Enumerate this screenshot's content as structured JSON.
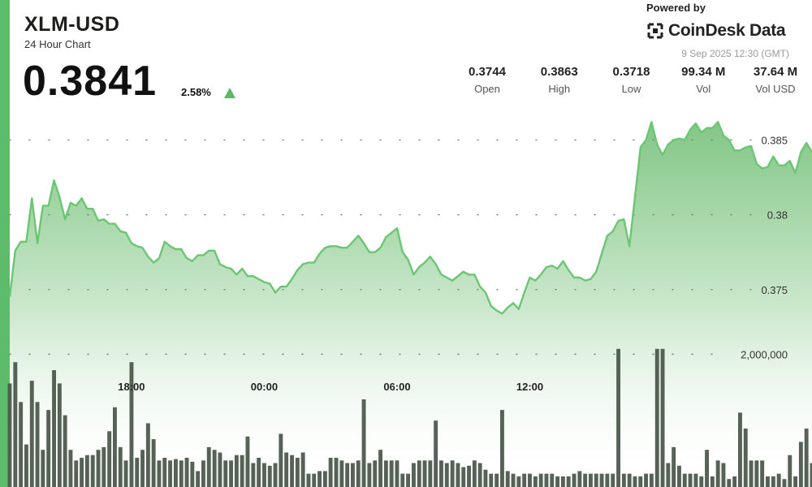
{
  "header": {
    "pair": "XLM-USD",
    "subtitle": "24 Hour Chart",
    "price": "0.3841",
    "change_pct": "2.58%",
    "change_direction": "up"
  },
  "branding": {
    "powered_by": "Powered by",
    "name": "CoinDesk Data",
    "timestamp": "9 Sep 2025 12:30 (GMT)"
  },
  "stats": [
    {
      "value": "0.3744",
      "label": "Open"
    },
    {
      "value": "0.3863",
      "label": "High"
    },
    {
      "value": "0.3718",
      "label": "Low"
    },
    {
      "value": "99.34 M",
      "label": "Vol"
    },
    {
      "value": "37.64 M",
      "label": "Vol USD"
    }
  ],
  "colors": {
    "accent": "#5cbc6b",
    "line": "#6cc574",
    "area_top": "#7cc47f",
    "volume_bar": "#4c5a4c",
    "up_arrow": "#57b965"
  },
  "chart_data": [
    {
      "type": "area",
      "series_role": "price",
      "time_range": [
        "2025-09-08 12:30",
        "2025-09-09 12:30"
      ],
      "interval_minutes": 15,
      "y_ticks": [
        "0.375",
        "0.38",
        "0.385"
      ],
      "x_ticks": [
        "18:00",
        "00:00",
        "06:00",
        "12:00"
      ],
      "ylim": [
        0.3713,
        0.3873
      ],
      "grid": "horizontal dotted",
      "values": [
        0.3745,
        0.3776,
        0.3782,
        0.3782,
        0.3811,
        0.3781,
        0.3806,
        0.3806,
        0.3823,
        0.3812,
        0.3797,
        0.3808,
        0.3806,
        0.3811,
        0.3804,
        0.3804,
        0.3796,
        0.3797,
        0.3794,
        0.3794,
        0.3789,
        0.3788,
        0.3781,
        0.3779,
        0.3778,
        0.3772,
        0.3768,
        0.3771,
        0.3782,
        0.3779,
        0.3777,
        0.3777,
        0.3771,
        0.3769,
        0.3773,
        0.3773,
        0.3776,
        0.3776,
        0.3767,
        0.3765,
        0.3764,
        0.376,
        0.3764,
        0.3759,
        0.3759,
        0.3757,
        0.3755,
        0.3754,
        0.3748,
        0.3752,
        0.3752,
        0.3757,
        0.3763,
        0.3767,
        0.3768,
        0.3768,
        0.3774,
        0.3778,
        0.3779,
        0.3779,
        0.3778,
        0.3778,
        0.3782,
        0.3786,
        0.3781,
        0.3775,
        0.3775,
        0.3778,
        0.3785,
        0.3788,
        0.3791,
        0.3775,
        0.377,
        0.376,
        0.3765,
        0.3768,
        0.3772,
        0.3767,
        0.376,
        0.3758,
        0.3756,
        0.3759,
        0.3762,
        0.376,
        0.376,
        0.3752,
        0.3748,
        0.3739,
        0.3736,
        0.3734,
        0.3738,
        0.3741,
        0.3737,
        0.3748,
        0.3758,
        0.3756,
        0.376,
        0.3765,
        0.3766,
        0.3764,
        0.3769,
        0.3763,
        0.3758,
        0.3758,
        0.3756,
        0.3757,
        0.3762,
        0.3774,
        0.3786,
        0.3789,
        0.3796,
        0.3797,
        0.3779,
        0.3812,
        0.3845,
        0.385,
        0.3862,
        0.3847,
        0.384,
        0.3847,
        0.385,
        0.3851,
        0.385,
        0.3857,
        0.3861,
        0.3855,
        0.3858,
        0.3858,
        0.3862,
        0.3853,
        0.385,
        0.3843,
        0.3843,
        0.3845,
        0.3846,
        0.3834,
        0.3831,
        0.3832,
        0.3839,
        0.3833,
        0.3833,
        0.3836,
        0.3828,
        0.3842,
        0.3848,
        0.3842
      ]
    },
    {
      "type": "bar",
      "series_role": "volume",
      "y_ticks": [
        "2,000,000"
      ],
      "ylim": [
        0,
        3300000
      ],
      "values": [
        1560000,
        1880000,
        1280000,
        640000,
        1600000,
        1280000,
        560000,
        1160000,
        1760000,
        1560000,
        1080000,
        560000,
        400000,
        440000,
        480000,
        480000,
        560000,
        600000,
        840000,
        1200000,
        600000,
        400000,
        1880000,
        440000,
        560000,
        960000,
        720000,
        400000,
        440000,
        400000,
        420000,
        400000,
        440000,
        380000,
        240000,
        400000,
        600000,
        560000,
        520000,
        400000,
        400000,
        480000,
        480000,
        760000,
        360000,
        440000,
        360000,
        320000,
        360000,
        800000,
        520000,
        480000,
        440000,
        520000,
        200000,
        200000,
        240000,
        240000,
        440000,
        440000,
        400000,
        360000,
        360000,
        400000,
        1320000,
        360000,
        400000,
        560000,
        400000,
        400000,
        400000,
        200000,
        200000,
        360000,
        400000,
        400000,
        400000,
        1000000,
        400000,
        360000,
        400000,
        360000,
        300000,
        320000,
        400000,
        360000,
        260000,
        200000,
        200000,
        1160000,
        240000,
        200000,
        160000,
        200000,
        200000,
        160000,
        200000,
        200000,
        200000,
        160000,
        160000,
        160000,
        200000,
        240000,
        200000,
        200000,
        200000,
        200000,
        200000,
        200000,
        2080000,
        200000,
        200000,
        160000,
        160000,
        200000,
        200000,
        2080000,
        2080000,
        360000,
        600000,
        320000,
        200000,
        200000,
        200000,
        160000,
        560000,
        160000,
        400000,
        360000,
        120000,
        160000,
        1120000,
        880000,
        400000,
        400000,
        400000,
        160000,
        160000,
        200000,
        120000,
        480000,
        160000,
        680000,
        880000,
        360000
      ]
    }
  ]
}
